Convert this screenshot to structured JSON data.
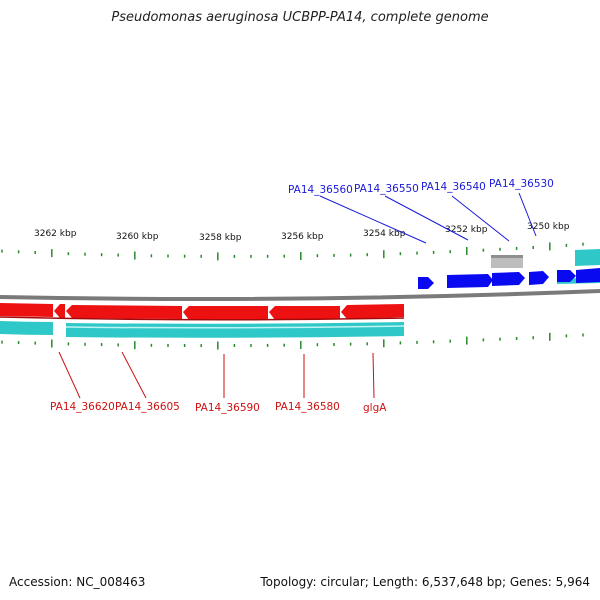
{
  "title": "Pseudomonas aeruginosa UCBPP-PA14, complete genome",
  "footer": {
    "accession": "Accession: NC_008463",
    "summary": "Topology: circular; Length: 6,537,648 bp; Genes: 5,964"
  },
  "ruler": {
    "labels": [
      "3262 kbp",
      "3260 kbp",
      "3258 kbp",
      "3256 kbp",
      "3254 kbp",
      "3252 kbp",
      "3250 kbp"
    ]
  },
  "colors": {
    "forward_gene": "#0a0af0",
    "reverse_gene": "#ee1111",
    "cds_band": "#2ec8c8",
    "backbone": "#808080",
    "tick": "#2a8a2a",
    "other_feature": "#bdbdbd",
    "forward_label": "#1a1ad8",
    "reverse_label": "#cc1111"
  },
  "genes": {
    "forward": [
      "PA14_36560",
      "PA14_36550",
      "PA14_36540",
      "PA14_36530"
    ],
    "reverse": [
      "PA14_36620",
      "PA14_36605",
      "PA14_36590",
      "PA14_36580",
      "glgA"
    ]
  }
}
